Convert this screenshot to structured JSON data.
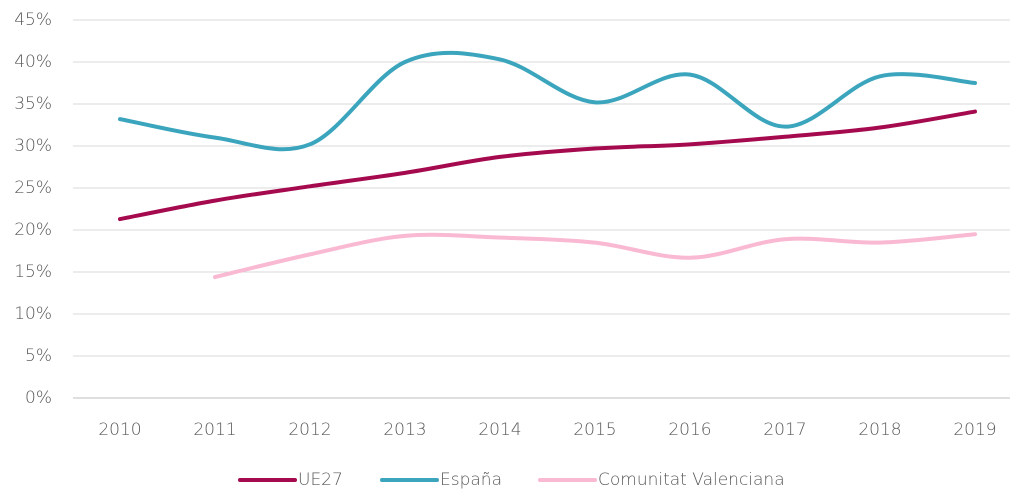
{
  "chart_data": {
    "type": "line",
    "categories": [
      "2010",
      "2011",
      "2012",
      "2013",
      "2014",
      "2015",
      "2016",
      "2017",
      "2018",
      "2019"
    ],
    "series": [
      {
        "name": "UE27",
        "color": "#a50a4f",
        "values": [
          21.3,
          23.5,
          25.2,
          26.8,
          28.7,
          29.7,
          30.2,
          31.1,
          32.2,
          34.1
        ]
      },
      {
        "name": "España",
        "color": "#3ba5bd",
        "values": [
          33.2,
          31.0,
          30.2,
          40.0,
          40.3,
          35.2,
          38.5,
          32.3,
          38.3,
          37.5
        ]
      },
      {
        "name": "Comunitat Valenciana",
        "color": "#f9b9d2",
        "values": [
          null,
          14.4,
          17.1,
          19.3,
          19.1,
          18.5,
          16.7,
          18.9,
          18.5,
          19.5
        ]
      }
    ],
    "ylim": [
      0,
      45
    ],
    "yticks": [
      {
        "value": 0,
        "label": "0%"
      },
      {
        "value": 5,
        "label": "5%"
      },
      {
        "value": 10,
        "label": "10%"
      },
      {
        "value": 15,
        "label": "15%"
      },
      {
        "value": 20,
        "label": "20%"
      },
      {
        "value": 25,
        "label": "25%"
      },
      {
        "value": 30,
        "label": "30%"
      },
      {
        "value": 35,
        "label": "35%"
      },
      {
        "value": 40,
        "label": "40%"
      },
      {
        "value": 45,
        "label": "45%"
      }
    ],
    "grid": true,
    "smooth": true,
    "legend": "bottom"
  }
}
